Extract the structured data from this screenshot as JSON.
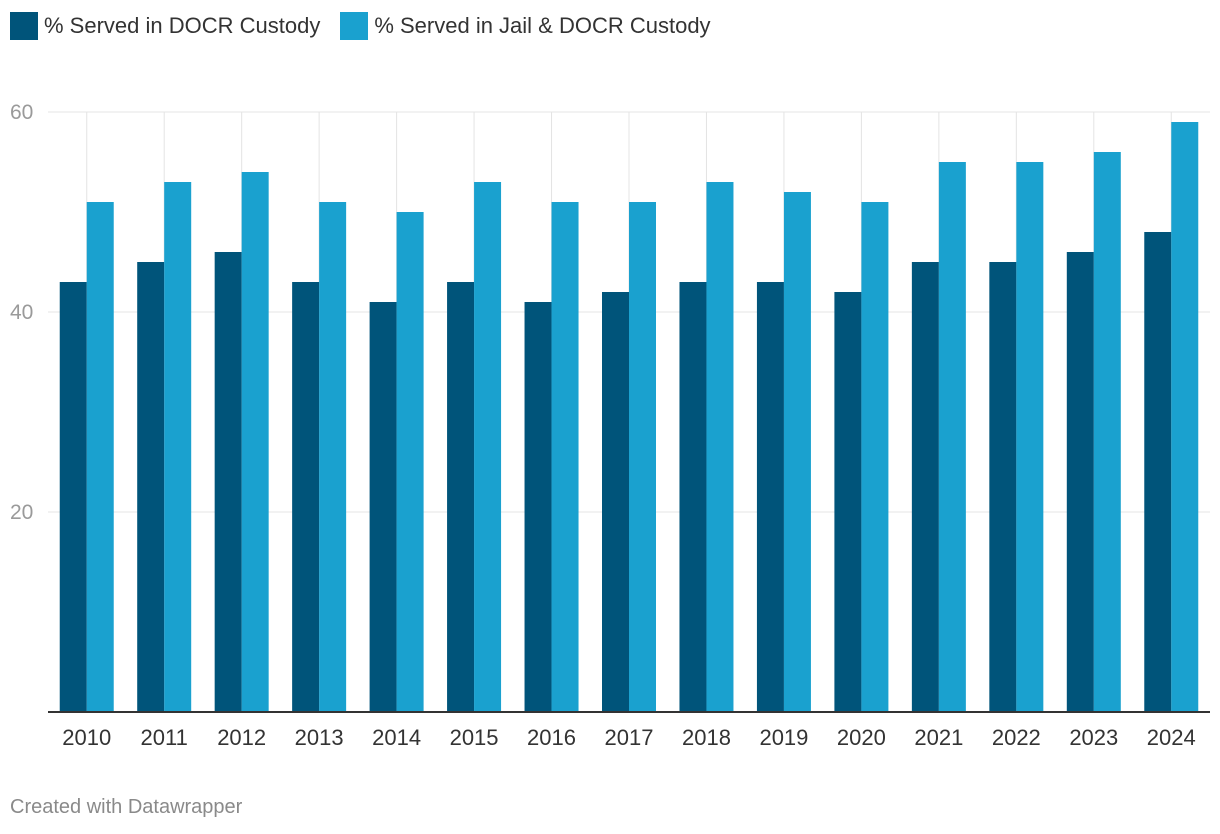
{
  "chart_data": {
    "type": "bar",
    "title": "",
    "xlabel": "",
    "ylabel": "",
    "ylim": [
      0,
      60
    ],
    "yticks": [
      20,
      40,
      60
    ],
    "grid": true,
    "legend_position": "top-left",
    "categories": [
      "2010",
      "2011",
      "2012",
      "2013",
      "2014",
      "2015",
      "2016",
      "2017",
      "2018",
      "2019",
      "2020",
      "2021",
      "2022",
      "2023",
      "2024"
    ],
    "series": [
      {
        "name": "% Served in DOCR Custody",
        "color": "#00547a",
        "values": [
          43,
          45,
          46,
          43,
          41,
          43,
          41,
          42,
          43,
          43,
          42,
          45,
          45,
          46,
          48
        ]
      },
      {
        "name": "% Served in Jail & DOCR Custody",
        "color": "#1aa1cf",
        "values": [
          51,
          53,
          54,
          51,
          50,
          53,
          51,
          51,
          53,
          52,
          51,
          55,
          55,
          56,
          59
        ]
      }
    ]
  },
  "footer": {
    "credit": "Created with Datawrapper"
  }
}
